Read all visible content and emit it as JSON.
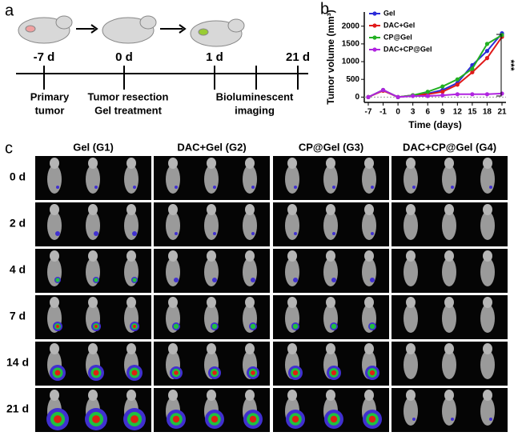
{
  "panel_labels": [
    "a",
    "b",
    "c"
  ],
  "timeline": {
    "days": [
      "-7 d",
      "0 d",
      "1 d",
      "21 d"
    ],
    "events": [
      [
        "Primary",
        "tumor"
      ],
      [
        "Tumor resection",
        "Gel treatment"
      ],
      [
        "Bioluminescent",
        "imaging"
      ]
    ]
  },
  "chart_data": {
    "type": "line",
    "xlabel": "Time (days)",
    "ylabel": "Tumor volume (mm³)",
    "categories": [
      "-7",
      "-1",
      "0",
      "3",
      "6",
      "9",
      "12",
      "15",
      "18",
      "21"
    ],
    "ylim": [
      -150,
      2400
    ],
    "yticks": [
      0,
      500,
      1000,
      1500,
      2000
    ],
    "annotation": "***",
    "legend": "upper-left",
    "series": [
      {
        "name": "Gel",
        "color": "#2b2bd8",
        "values": [
          0,
          200,
          0,
          50,
          100,
          200,
          400,
          900,
          1300,
          1800
        ]
      },
      {
        "name": "DAC+Gel",
        "color": "#e01a1a",
        "values": [
          0,
          180,
          0,
          50,
          80,
          150,
          350,
          700,
          1100,
          1700
        ]
      },
      {
        "name": "CP@Gel",
        "color": "#22b022",
        "values": [
          0,
          200,
          0,
          50,
          150,
          300,
          500,
          800,
          1500,
          1750
        ]
      },
      {
        "name": "DAC+CP@Gel",
        "color": "#b024e0",
        "values": [
          0,
          200,
          0,
          30,
          30,
          50,
          80,
          80,
          80,
          100
        ]
      }
    ]
  },
  "imaging": {
    "groups": [
      "Gel (G1)",
      "DAC+Gel (G2)",
      "CP@Gel (G3)",
      "DAC+CP@Gel (G4)"
    ],
    "days": [
      "0 d",
      "2 d",
      "4 d",
      "7 d",
      "14 d",
      "21 d"
    ]
  }
}
